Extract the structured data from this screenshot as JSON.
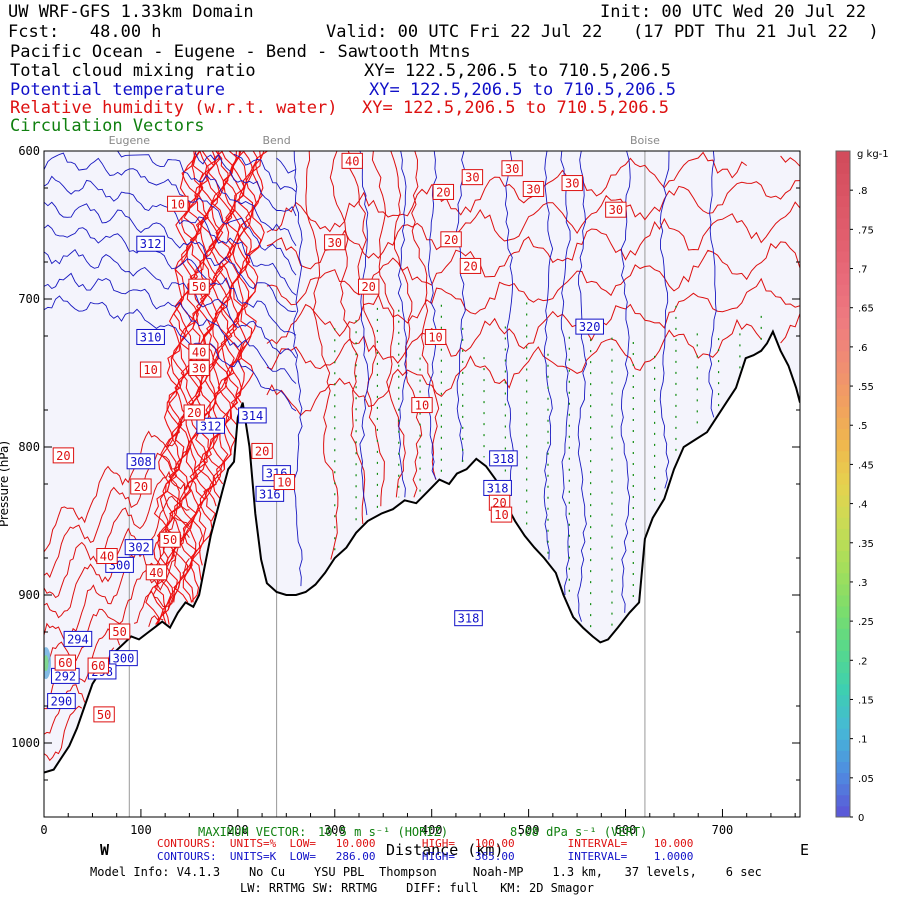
{
  "header": {
    "model_title": "UW WRF-GFS 1.33km Domain",
    "init": "Init: 00 UTC Wed 20 Jul 22",
    "fcst": "Fcst:   48.00 h",
    "valid": "Valid: 00 UTC Fri 22 Jul 22   (17 PDT Thu 21 Jul 22  )",
    "route": "Pacific Ocean - Eugene - Bend - Sawtooth Mtns",
    "fields": [
      {
        "name": "Total cloud mixing ratio",
        "xy": "XY= 122.5,206.5 to 710.5,206.5",
        "color": "#000000"
      },
      {
        "name": "Potential temperature",
        "xy": "XY= 122.5,206.5 to 710.5,206.5",
        "color": "#1010c8"
      },
      {
        "name": "Relative humidity (w.r.t. water)",
        "xy": "XY= 122.5,206.5 to 710.5,206.5",
        "color": "#dd1010"
      },
      {
        "name": "Circulation Vectors",
        "xy": "",
        "color": "#108010"
      }
    ]
  },
  "chart_data": {
    "type": "cross-section",
    "xlabel": "Distance (km)",
    "ylabel": "Pressure (hPa)",
    "xlim": [
      0,
      780
    ],
    "ylim": [
      1050,
      600
    ],
    "x_ticks": [
      0,
      100,
      200,
      300,
      400,
      500,
      600,
      700
    ],
    "y_ticks": [
      600,
      700,
      800,
      900,
      1000
    ],
    "y_tick_labels": [
      "600",
      "700",
      "800",
      "900",
      "1000"
    ],
    "places": [
      {
        "name": "Eugene",
        "x": 88
      },
      {
        "name": "Bend",
        "x": 240
      },
      {
        "name": "Boise",
        "x": 620
      }
    ],
    "terrain": [
      [
        0,
        1020
      ],
      [
        10,
        1018
      ],
      [
        18,
        1010
      ],
      [
        26,
        1002
      ],
      [
        34,
        990
      ],
      [
        42,
        975
      ],
      [
        50,
        960
      ],
      [
        58,
        952
      ],
      [
        66,
        945
      ],
      [
        74,
        938
      ],
      [
        82,
        933
      ],
      [
        90,
        928
      ],
      [
        98,
        930
      ],
      [
        106,
        926
      ],
      [
        114,
        922
      ],
      [
        122,
        918
      ],
      [
        130,
        922
      ],
      [
        138,
        912
      ],
      [
        146,
        905
      ],
      [
        154,
        908
      ],
      [
        160,
        900
      ],
      [
        166,
        880
      ],
      [
        172,
        860
      ],
      [
        178,
        845
      ],
      [
        184,
        830
      ],
      [
        190,
        815
      ],
      [
        196,
        810
      ],
      [
        200,
        780
      ],
      [
        205,
        770
      ],
      [
        212,
        800
      ],
      [
        218,
        845
      ],
      [
        224,
        876
      ],
      [
        230,
        892
      ],
      [
        240,
        898
      ],
      [
        250,
        900
      ],
      [
        260,
        900
      ],
      [
        270,
        898
      ],
      [
        280,
        893
      ],
      [
        290,
        885
      ],
      [
        300,
        875
      ],
      [
        312,
        868
      ],
      [
        322,
        858
      ],
      [
        334,
        850
      ],
      [
        348,
        845
      ],
      [
        360,
        842
      ],
      [
        372,
        836
      ],
      [
        384,
        838
      ],
      [
        396,
        830
      ],
      [
        408,
        822
      ],
      [
        418,
        825
      ],
      [
        426,
        818
      ],
      [
        436,
        815
      ],
      [
        446,
        808
      ],
      [
        456,
        813
      ],
      [
        466,
        822
      ],
      [
        476,
        838
      ],
      [
        486,
        850
      ],
      [
        496,
        860
      ],
      [
        506,
        868
      ],
      [
        516,
        875
      ],
      [
        528,
        885
      ],
      [
        536,
        900
      ],
      [
        546,
        915
      ],
      [
        556,
        922
      ],
      [
        566,
        928
      ],
      [
        574,
        932
      ],
      [
        582,
        930
      ],
      [
        592,
        922
      ],
      [
        604,
        912
      ],
      [
        614,
        905
      ],
      [
        620,
        862
      ],
      [
        628,
        848
      ],
      [
        640,
        835
      ],
      [
        650,
        815
      ],
      [
        660,
        800
      ],
      [
        672,
        795
      ],
      [
        684,
        790
      ],
      [
        694,
        780
      ],
      [
        704,
        770
      ],
      [
        714,
        760
      ],
      [
        724,
        740
      ],
      [
        732,
        738
      ],
      [
        740,
        735
      ],
      [
        746,
        730
      ],
      [
        752,
        722
      ],
      [
        760,
        735
      ],
      [
        768,
        745
      ],
      [
        776,
        760
      ],
      [
        780,
        770
      ]
    ],
    "contours": [
      {
        "name": "Potential temperature",
        "units": "K",
        "low": 286.0,
        "high": 365.0,
        "interval": 1.0,
        "color": "#1010c8",
        "labels": [
          {
            "text": "312",
            "x": 110,
            "p": 663
          },
          {
            "text": "310",
            "x": 110,
            "p": 726
          },
          {
            "text": "312",
            "x": 172,
            "p": 786
          },
          {
            "text": "314",
            "x": 215,
            "p": 779
          },
          {
            "text": "316",
            "x": 240,
            "p": 818
          },
          {
            "text": "316",
            "x": 233,
            "p": 832
          },
          {
            "text": "308",
            "x": 100,
            "p": 810
          },
          {
            "text": "302",
            "x": 98,
            "p": 868
          },
          {
            "text": "300",
            "x": 78,
            "p": 880
          },
          {
            "text": "294",
            "x": 35,
            "p": 930
          },
          {
            "text": "300",
            "x": 82,
            "p": 943
          },
          {
            "text": "298",
            "x": 60,
            "p": 952
          },
          {
            "text": "292",
            "x": 22,
            "p": 955
          },
          {
            "text": "290",
            "x": 18,
            "p": 972
          },
          {
            "text": "318",
            "x": 438,
            "p": 916
          },
          {
            "text": "318",
            "x": 474,
            "p": 808
          },
          {
            "text": "318",
            "x": 468,
            "p": 828
          },
          {
            "text": "320",
            "x": 563,
            "p": 719
          }
        ]
      },
      {
        "name": "Relative humidity",
        "units": "%",
        "low": 10.0,
        "high": 100.0,
        "interval": 10.0,
        "color": "#dd1010",
        "labels": [
          {
            "text": "40",
            "x": 318,
            "p": 607
          },
          {
            "text": "20",
            "x": 412,
            "p": 628
          },
          {
            "text": "30",
            "x": 442,
            "p": 618
          },
          {
            "text": "30",
            "x": 483,
            "p": 612
          },
          {
            "text": "30",
            "x": 505,
            "p": 626
          },
          {
            "text": "30",
            "x": 545,
            "p": 622
          },
          {
            "text": "30",
            "x": 590,
            "p": 640
          },
          {
            "text": "20",
            "x": 420,
            "p": 660
          },
          {
            "text": "20",
            "x": 440,
            "p": 678
          },
          {
            "text": "30",
            "x": 300,
            "p": 662
          },
          {
            "text": "20",
            "x": 335,
            "p": 692
          },
          {
            "text": "10",
            "x": 138,
            "p": 636
          },
          {
            "text": "50",
            "x": 160,
            "p": 692
          },
          {
            "text": "10",
            "x": 404,
            "p": 726
          },
          {
            "text": "10",
            "x": 390,
            "p": 772
          },
          {
            "text": "40",
            "x": 160,
            "p": 736
          },
          {
            "text": "30",
            "x": 160,
            "p": 747
          },
          {
            "text": "10",
            "x": 110,
            "p": 748
          },
          {
            "text": "20",
            "x": 155,
            "p": 777
          },
          {
            "text": "20",
            "x": 225,
            "p": 803
          },
          {
            "text": "20",
            "x": 20,
            "p": 806
          },
          {
            "text": "20",
            "x": 100,
            "p": 827
          },
          {
            "text": "10",
            "x": 248,
            "p": 824
          },
          {
            "text": "20",
            "x": 470,
            "p": 838
          },
          {
            "text": "10",
            "x": 472,
            "p": 846
          },
          {
            "text": "50",
            "x": 130,
            "p": 863
          },
          {
            "text": "40",
            "x": 65,
            "p": 874
          },
          {
            "text": "40",
            "x": 116,
            "p": 885
          },
          {
            "text": "50",
            "x": 78,
            "p": 925
          },
          {
            "text": "60",
            "x": 56,
            "p": 948
          },
          {
            "text": "60",
            "x": 22,
            "p": 946
          },
          {
            "text": "50",
            "x": 62,
            "p": 981
          }
        ]
      }
    ],
    "vectors_note": "MAXIMUM VECTOR:  10.5 m s-1 (HORIZ)  8.08 dPa s-1 (VERT)",
    "colorbar": {
      "title": "g kg-1",
      "ticks": [
        "0",
        ".05",
        ".1",
        ".15",
        ".2",
        ".25",
        ".3",
        ".35",
        ".4",
        ".45",
        ".5",
        ".55",
        ".6",
        ".65",
        ".7",
        ".75",
        ".8"
      ],
      "min": 0.0,
      "max": 0.85,
      "colors": [
        "#5a5ad8",
        "#4f8fe0",
        "#46b8d6",
        "#3ecfb0",
        "#58d98a",
        "#7fdd6a",
        "#a6de5a",
        "#c9dc55",
        "#e6d24e",
        "#efb74e",
        "#f1a060",
        "#f08c74",
        "#ee7b80",
        "#e96b7a",
        "#e25f6e",
        "#db5565",
        "#d24c5c"
      ]
    }
  },
  "footer": {
    "max_vector_a": "MAXIMUM VECTOR:",
    "max_vector_b": "10.5 m s⁻¹ (HORIZ)",
    "max_vector_c": "8.08 dPa s⁻¹ (VERT)",
    "axis_w": "W",
    "axis_e": "E",
    "xlabel": "Distance (km)",
    "rh_contours": "CONTOURS:  UNITS=%  LOW=   10.000       HIGH=   100.00        INTERVAL=    10.000",
    "th_contours": "CONTOURS:  UNITS=K  LOW=   286.00       HIGH=   365.00        INTERVAL=    1.0000",
    "model_info": "Model Info: V4.1.3    No Cu    YSU PBL  Thompson     Noah-MP    1.3 km,   37 levels,    6 sec",
    "model_info2": "LW: RRTMG SW: RRTMG    DIFF: full   KM: 2D Smagor"
  }
}
